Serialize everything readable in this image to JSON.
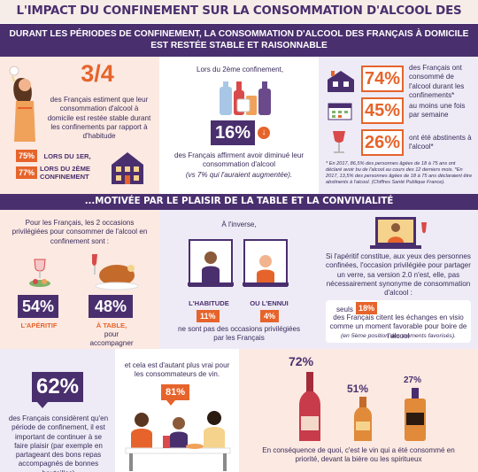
{
  "title": "L'IMPACT DU CONFINEMENT SUR LA CONSOMMATION D'ALCOOL DES FRANÇAIS À DOMICILE",
  "band1": {
    "line1": "DURANT LES PÉRIODES DE CONFINEMENT, LA CONSOMMATION D'ALCOOL DES FRANÇAIS À DOMICILE",
    "line2": "EST RESTÉE STABLE ET RAISONNABLE"
  },
  "p1": {
    "big": "3/4",
    "text": "des Français estiment que leur consommation d'alcool à domicile est restée stable durant les confinements par rapport à d'habitude",
    "row1_pct": "75%",
    "row1_label": "LORS DU 1ER,",
    "row2_pct": "77%",
    "row2_label_a": "LORS DU 2ÈME",
    "row2_label_b": "CONFINEMENT"
  },
  "p2": {
    "intro": "Lors du 2ème confinement,",
    "pct": "16%",
    "text": "des Français affirment avoir diminué leur consommation d'alcool",
    "sub": "(vs 7% qui l'auraient augmentée)."
  },
  "p3": {
    "rows": [
      {
        "pct": "74%",
        "text": "des Français ont consommé de l'alcool durant les confinements*"
      },
      {
        "pct": "45%",
        "text": "au moins une fois par semaine"
      },
      {
        "pct": "26%",
        "text": "ont été abstinents à l'alcool*"
      }
    ],
    "note": "* En 2017, 86,5% des personnes âgées de 18 à 75 ans ont déclaré avoir bu de l'alcool au cours des 12 derniers mois. *En 2017, 13,5% des personnes âgées de 18 à 75 ans déclaraient être abstinents à l'alcool. (Chiffres Santé Publique France)."
  },
  "band2": "...MOTIVÉE PAR LE PLAISIR DE LA TABLE ET LA CONVIVIALITÉ",
  "p4": {
    "intro": "Pour les Français, les 2 occasions privilégiées pour consommer de l'alcool en confinement sont :",
    "a_pct": "54%",
    "a_label": "L'APÉRITIF",
    "b_pct": "48%",
    "b_label": "À TABLE,",
    "b_sub": "pour accompagner un bon repas"
  },
  "p5": {
    "intro": "À l'inverse,",
    "a_label": "L'HABITUDE",
    "a_pct": "11%",
    "b_label": "OU L'ENNUI",
    "b_pct": "4%",
    "text": "ne sont pas des occasions privilégiées par les Français"
  },
  "p6": {
    "text": "Si l'apéritif constitue, aux yeux des personnes confinées, l'occasion privilégiée pour partager un verre, sa version 2.0 n'est, elle, pas nécessairement synonyme de consommation d'alcool :",
    "box_pre": "seuls",
    "box_pct": "18%",
    "box_text": "des Français citent les échanges en visio comme un moment favorable pour boire de l'alcool",
    "box_sub": "(en 5ème position des moments favorisés)."
  },
  "p7": {
    "pct": "62%",
    "text": "des Français considèrent qu'en période de confinement, il est important de continuer à se faire plaisir (par exemple en partageant des bons repas accompagnés de bonnes bouteilles)"
  },
  "p8": {
    "intro": "et cela est d'autant plus vrai pour les consommateurs de vin.",
    "pct": "81%"
  },
  "p9": {
    "wine": "72%",
    "beer": "51%",
    "spirits": "27%",
    "text": "En conséquence de quoi, c'est le vin qui a été consommé en priorité, devant la bière ou les spiritueux"
  },
  "colors": {
    "purple": "#4a2f6e",
    "orange": "#e6642b",
    "pink": "#fbe9e2",
    "lavender": "#eeebf6"
  }
}
